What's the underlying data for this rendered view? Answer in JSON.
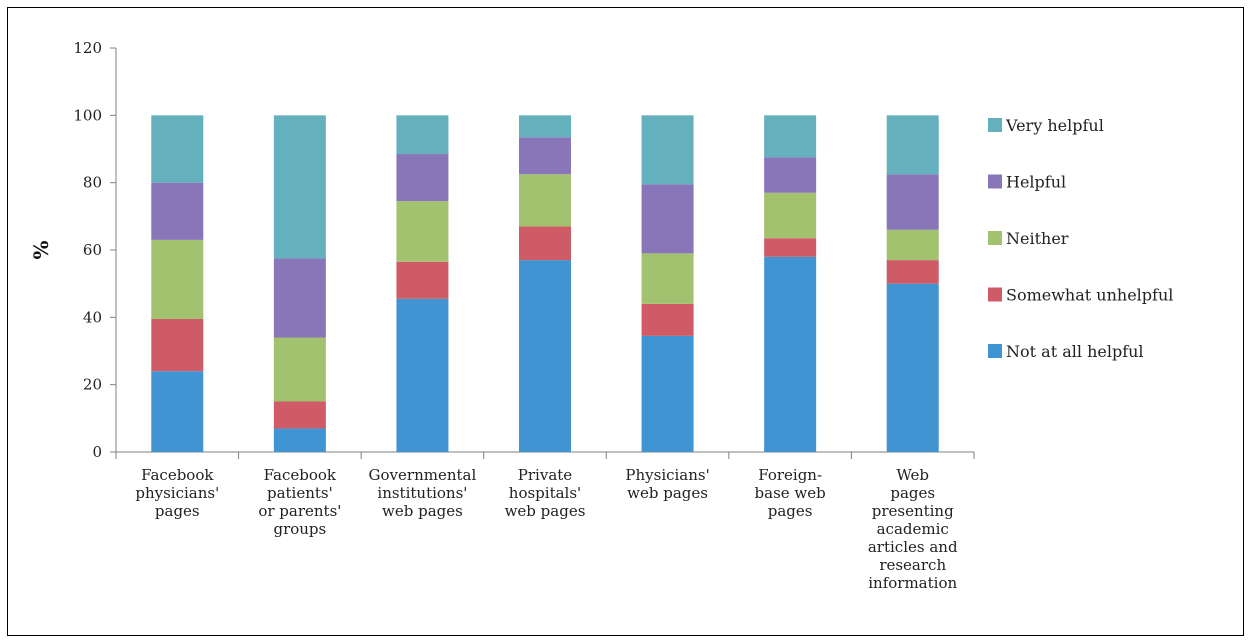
{
  "chart_data": {
    "type": "bar",
    "stacked": true,
    "ylabel": "%",
    "xlabel": "",
    "ylim": [
      0,
      120
    ],
    "yticks": [
      0,
      20,
      40,
      60,
      80,
      100,
      120
    ],
    "categories": [
      [
        "Facebook",
        "physicians'",
        "pages"
      ],
      [
        "Facebook",
        "patients'",
        "or parents'",
        "groups"
      ],
      [
        "Governmental",
        "institutions'",
        "web pages"
      ],
      [
        "Private",
        "hospitals'",
        "web pages"
      ],
      [
        "Physicians'",
        "web pages"
      ],
      [
        "Foreign-",
        "base web",
        "pages"
      ],
      [
        "Web",
        "pages",
        "presenting",
        "academic",
        "articles and",
        "research",
        "information"
      ]
    ],
    "series": [
      {
        "name": "Not at all helpful",
        "color": "#4194d2",
        "values": [
          24,
          7,
          45.5,
          57,
          34.5,
          58,
          50
        ]
      },
      {
        "name": "Somewhat unhelpful",
        "color": "#cf5b66",
        "values": [
          15.5,
          8,
          11,
          10,
          9.5,
          5.5,
          7
        ]
      },
      {
        "name": "Neither",
        "color": "#a3c26f",
        "values": [
          23.5,
          19,
          18,
          15.5,
          15,
          13.5,
          9
        ]
      },
      {
        "name": "Helpful",
        "color": "#8976b8",
        "values": [
          17,
          23.5,
          14,
          11,
          20.5,
          10.5,
          16.5
        ]
      },
      {
        "name": "Very helpful",
        "color": "#64b0bd",
        "values": [
          20,
          42.5,
          11.5,
          6.5,
          20.5,
          12.5,
          17.5
        ]
      }
    ],
    "legend": "right",
    "grid": false
  }
}
